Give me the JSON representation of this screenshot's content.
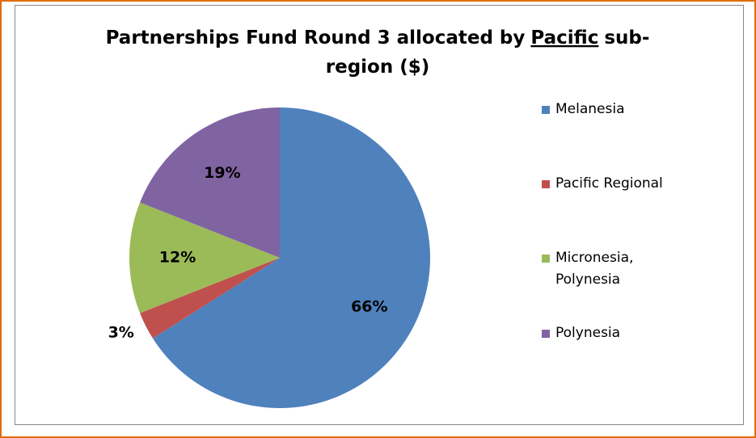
{
  "chart_data": {
    "type": "pie",
    "title": [
      "Partnerships Fund Round 3 allocated by",
      "Pacific",
      "sub-",
      "region ($)"
    ],
    "categories": [
      "Melanesia",
      "Pacific Regional",
      "Micronesia, Polynesia",
      "Polynesia"
    ],
    "values": [
      66,
      3,
      12,
      19
    ],
    "value_labels": [
      "66%",
      "3%",
      "12%",
      "19%"
    ],
    "colors": [
      "#4f81bd",
      "#c0504d",
      "#9bbb59",
      "#8064a2"
    ],
    "legend": "right"
  }
}
